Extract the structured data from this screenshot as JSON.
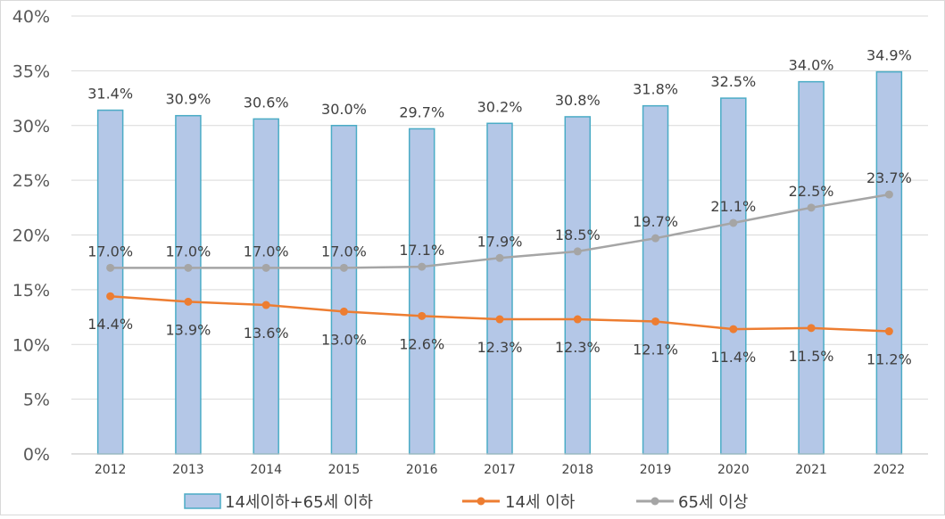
{
  "chart_data": {
    "type": "bar",
    "categories": [
      "2012",
      "2013",
      "2014",
      "2015",
      "2016",
      "2017",
      "2018",
      "2019",
      "2020",
      "2021",
      "2022"
    ],
    "series": [
      {
        "name": "14세이하+65세 이하",
        "type": "bar",
        "color": "#B4C7E7",
        "border": "#4BACC6",
        "values": [
          31.4,
          30.9,
          30.6,
          30.0,
          29.7,
          30.2,
          30.8,
          31.8,
          32.5,
          34.0,
          34.9
        ],
        "labels": [
          "31.4%",
          "30.9%",
          "30.6%",
          "30.0%",
          "29.7%",
          "30.2%",
          "30.8%",
          "31.8%",
          "32.5%",
          "34.0%",
          "34.9%"
        ]
      },
      {
        "name": "14세 이하",
        "type": "line",
        "color": "#ED7D31",
        "values": [
          14.4,
          13.9,
          13.6,
          13.0,
          12.6,
          12.3,
          12.3,
          12.1,
          11.4,
          11.5,
          11.2
        ],
        "labels": [
          "14.4%",
          "13.9%",
          "13.6%",
          "13.0%",
          "12.6%",
          "12.3%",
          "12.3%",
          "12.1%",
          "11.4%",
          "11.5%",
          "11.2%"
        ]
      },
      {
        "name": "65세 이상",
        "type": "line",
        "color": "#A5A5A5",
        "values": [
          17.0,
          17.0,
          17.0,
          17.0,
          17.1,
          17.9,
          18.5,
          19.7,
          21.1,
          22.5,
          23.7
        ],
        "labels": [
          "17.0%",
          "17.0%",
          "17.0%",
          "17.0%",
          "17.1%",
          "17.9%",
          "18.5%",
          "19.7%",
          "21.1%",
          "22.5%",
          "23.7%"
        ]
      }
    ],
    "ylim": [
      0,
      40
    ],
    "yticks": [
      "0%",
      "5%",
      "10%",
      "15%",
      "20%",
      "25%",
      "30%",
      "35%",
      "40%"
    ],
    "grid": true,
    "legend_position": "bottom"
  }
}
